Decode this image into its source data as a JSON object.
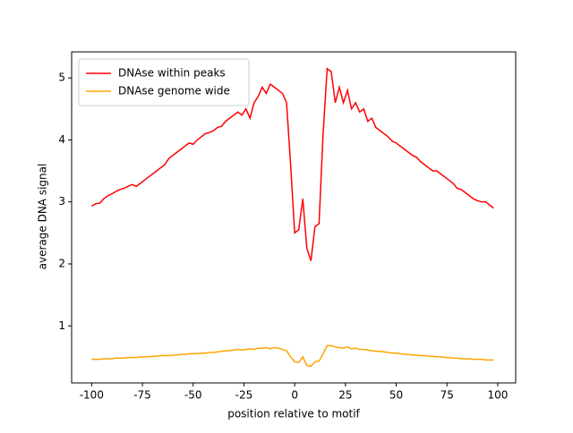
{
  "chart_data": {
    "type": "line",
    "x": [
      -100,
      -98,
      -96,
      -94,
      -92,
      -90,
      -88,
      -86,
      -84,
      -82,
      -80,
      -78,
      -76,
      -74,
      -72,
      -70,
      -68,
      -66,
      -64,
      -62,
      -60,
      -58,
      -56,
      -54,
      -52,
      -50,
      -48,
      -46,
      -44,
      -42,
      -40,
      -38,
      -36,
      -34,
      -32,
      -30,
      -28,
      -26,
      -24,
      -22,
      -20,
      -18,
      -16,
      -14,
      -12,
      -10,
      -8,
      -6,
      -4,
      -2,
      0,
      2,
      4,
      6,
      8,
      10,
      12,
      14,
      16,
      18,
      20,
      22,
      24,
      26,
      28,
      30,
      32,
      34,
      36,
      38,
      40,
      42,
      44,
      46,
      48,
      50,
      52,
      54,
      56,
      58,
      60,
      62,
      64,
      66,
      68,
      70,
      72,
      74,
      76,
      78,
      80,
      82,
      84,
      86,
      88,
      90,
      92,
      94,
      96,
      98
    ],
    "series": [
      {
        "name": "DNAse within peaks",
        "color": "#ff0000",
        "values": [
          2.93,
          2.97,
          2.98,
          3.05,
          3.1,
          3.13,
          3.17,
          3.2,
          3.22,
          3.25,
          3.28,
          3.25,
          3.3,
          3.35,
          3.4,
          3.45,
          3.5,
          3.55,
          3.6,
          3.7,
          3.75,
          3.8,
          3.85,
          3.9,
          3.95,
          3.93,
          4.0,
          4.05,
          4.1,
          4.12,
          4.15,
          4.2,
          4.22,
          4.3,
          4.35,
          4.4,
          4.45,
          4.4,
          4.5,
          4.35,
          4.6,
          4.7,
          4.85,
          4.75,
          4.9,
          4.85,
          4.8,
          4.75,
          4.6,
          3.6,
          2.5,
          2.55,
          3.05,
          2.25,
          2.05,
          2.6,
          2.65,
          4.1,
          5.15,
          5.1,
          4.6,
          4.85,
          4.6,
          4.8,
          4.5,
          4.6,
          4.45,
          4.5,
          4.3,
          4.35,
          4.2,
          4.15,
          4.1,
          4.05,
          3.98,
          3.95,
          3.9,
          3.85,
          3.8,
          3.75,
          3.72,
          3.65,
          3.6,
          3.55,
          3.5,
          3.5,
          3.45,
          3.4,
          3.35,
          3.3,
          3.22,
          3.2,
          3.15,
          3.1,
          3.05,
          3.02,
          3.0,
          3.0,
          2.95,
          2.9
        ]
      },
      {
        "name": "DNAse genome wide",
        "color": "#ffa500",
        "values": [
          0.46,
          0.46,
          0.46,
          0.47,
          0.47,
          0.47,
          0.48,
          0.48,
          0.48,
          0.49,
          0.49,
          0.49,
          0.5,
          0.5,
          0.5,
          0.51,
          0.51,
          0.52,
          0.52,
          0.52,
          0.53,
          0.53,
          0.54,
          0.54,
          0.55,
          0.55,
          0.55,
          0.56,
          0.56,
          0.57,
          0.57,
          0.58,
          0.59,
          0.6,
          0.6,
          0.61,
          0.62,
          0.61,
          0.62,
          0.63,
          0.62,
          0.64,
          0.64,
          0.65,
          0.63,
          0.65,
          0.64,
          0.62,
          0.6,
          0.5,
          0.42,
          0.41,
          0.5,
          0.36,
          0.35,
          0.42,
          0.43,
          0.55,
          0.68,
          0.68,
          0.66,
          0.65,
          0.64,
          0.66,
          0.63,
          0.64,
          0.62,
          0.62,
          0.61,
          0.6,
          0.59,
          0.59,
          0.58,
          0.57,
          0.56,
          0.56,
          0.55,
          0.54,
          0.54,
          0.53,
          0.53,
          0.52,
          0.52,
          0.51,
          0.51,
          0.5,
          0.5,
          0.49,
          0.49,
          0.48,
          0.48,
          0.47,
          0.47,
          0.47,
          0.46,
          0.46,
          0.46,
          0.45,
          0.45,
          0.45
        ]
      }
    ],
    "xlabel": "position relative to motif",
    "ylabel": "average DNA signal",
    "xlim": [
      -109.85,
      108.85
    ],
    "ylim": [
      0.08,
      5.42
    ],
    "xticks": [
      -100,
      -75,
      -50,
      -25,
      0,
      25,
      50,
      75,
      100
    ],
    "yticks": [
      1,
      2,
      3,
      4,
      5
    ],
    "legend": "upper left",
    "grid": false
  }
}
